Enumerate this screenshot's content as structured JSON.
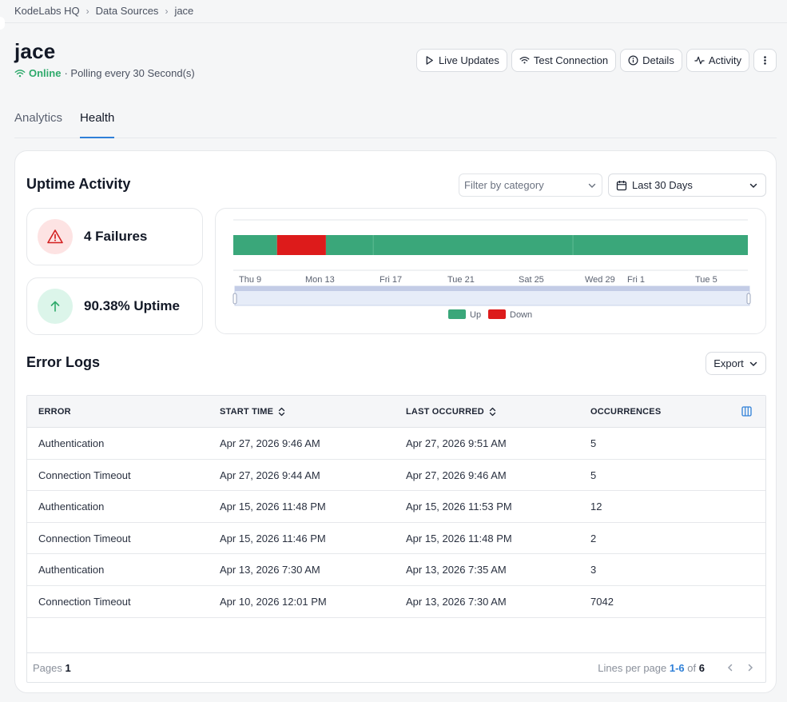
{
  "breadcrumb": {
    "items": [
      "KodeLabs HQ",
      "Data Sources",
      "jace"
    ]
  },
  "header": {
    "title": "jace",
    "status": "Online",
    "polling": "· Polling every 30 Second(s)"
  },
  "actions": {
    "live_updates": "Live Updates",
    "test_connection": "Test Connection",
    "details": "Details",
    "activity": "Activity"
  },
  "tabs": [
    {
      "label": "Analytics",
      "active": false
    },
    {
      "label": "Health",
      "active": true
    }
  ],
  "uptime": {
    "title": "Uptime Activity",
    "filter_placeholder": "Filter by category",
    "date_range": "Last 30 Days",
    "failures": "4 Failures",
    "uptime": "90.38% Uptime"
  },
  "chart_data": {
    "type": "timeline",
    "x_ticks": [
      "Thu 9",
      "Mon 13",
      "Fri 17",
      "Tue 21",
      "Sat 25",
      "Wed 29",
      "Fri 1",
      "Tue 5"
    ],
    "segments": [
      {
        "state": "Up",
        "start": 0.0,
        "end": 0.085
      },
      {
        "state": "Down",
        "start": 0.085,
        "end": 0.18
      },
      {
        "state": "Up",
        "start": 0.18,
        "end": 1.0
      }
    ],
    "legend": [
      {
        "label": "Up",
        "color": "#3aa77a"
      },
      {
        "label": "Down",
        "color": "#dd1b1b"
      }
    ]
  },
  "error_logs": {
    "title": "Error Logs",
    "export_label": "Export",
    "columns": [
      "ERROR",
      "START TIME",
      "LAST OCCURRED",
      "OCCURRENCES"
    ],
    "rows": [
      {
        "error": "Authentication",
        "start": "Apr 27, 2026 9:46 AM",
        "last": "Apr 27, 2026 9:51 AM",
        "count": "5"
      },
      {
        "error": "Connection Timeout",
        "start": "Apr 27, 2026 9:44 AM",
        "last": "Apr 27, 2026 9:46 AM",
        "count": "5"
      },
      {
        "error": "Authentication",
        "start": "Apr 15, 2026 11:48 PM",
        "last": "Apr 15, 2026 11:53 PM",
        "count": "12"
      },
      {
        "error": "Connection Timeout",
        "start": "Apr 15, 2026 11:46 PM",
        "last": "Apr 15, 2026 11:48 PM",
        "count": "2"
      },
      {
        "error": "Authentication",
        "start": "Apr 13, 2026 7:30 AM",
        "last": "Apr 13, 2026 7:35 AM",
        "count": "3"
      },
      {
        "error": "Connection Timeout",
        "start": "Apr 10, 2026 12:01 PM",
        "last": "Apr 13, 2026 7:30 AM",
        "count": "7042"
      }
    ],
    "footer": {
      "pages_label": "Pages",
      "pages_value": "1",
      "lines_label": "Lines per page",
      "range": "1-6",
      "of_label": "of",
      "total": "6"
    }
  },
  "colors": {
    "accent": "#2f80d8",
    "online": "#2eaa6b",
    "up": "#3aa77a",
    "down": "#dd1b1b"
  }
}
